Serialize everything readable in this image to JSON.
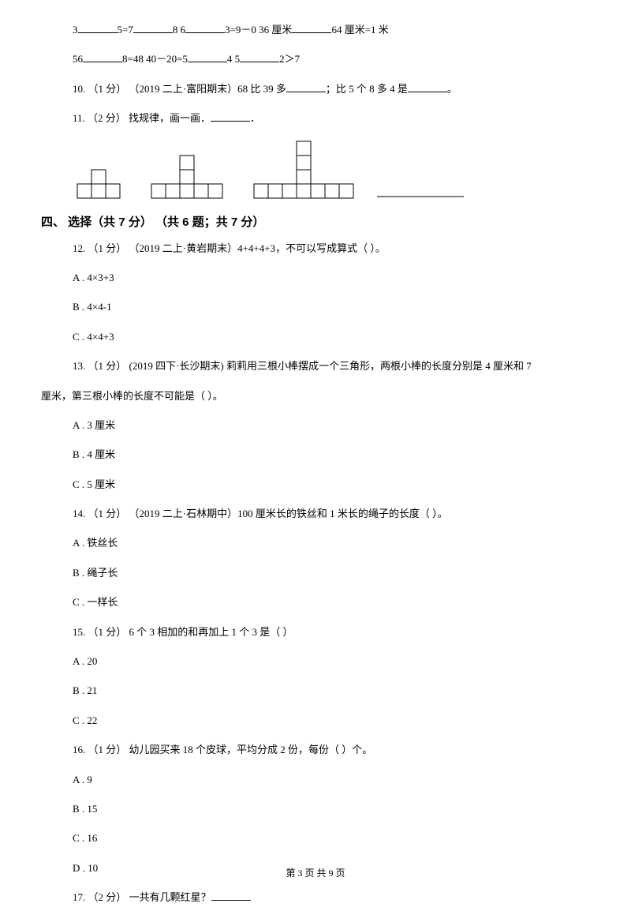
{
  "line_fill_a": {
    "p1": "3",
    "p2": "5=7",
    "p3": "8 6",
    "p4": "3=9－0   36 厘米",
    "p5": "64 厘米=1 米"
  },
  "line_fill_b": {
    "p1": "56",
    "p2": "8=48   40－20=5",
    "p3": "4 5",
    "p4": "2＞7"
  },
  "q10": {
    "pre": "10. （1 分） （2019 二上·富阳期末）68 比 39 多",
    "mid": "；比 5 个 8 多 4 是",
    "end": "。"
  },
  "q11": {
    "pre": "11. （2 分）  找规律，画一画．",
    "end": "．"
  },
  "section4": "四、 选择（共 7 分） （共 6 题；共 7 分）",
  "q12": {
    "text": "12. （1 分） （2019 二上·黄岩期末）4+4+4+3，不可以写成算式（     ）。",
    "a": "A . 4×3+3",
    "b": "B . 4×4-1",
    "c": "C . 4×4+3"
  },
  "q13": {
    "l1": "13.  （1 分）  (2019 四下·长沙期末)  莉莉用三根小棒摆成一个三角形，两根小棒的长度分别是 4 厘米和 7",
    "l2": "厘米，第三根小棒的长度不可能是（    ）。",
    "a": "A . 3 厘米",
    "b": "B . 4 厘米",
    "c": "C . 5 厘米"
  },
  "q14": {
    "text": "14. （1 分） （2019 二上·石林期中）100 厘米长的铁丝和 1 米长的绳子的长度（     ）。",
    "a": "A . 铁丝长",
    "b": "B . 绳子长",
    "c": "C . 一样长"
  },
  "q15": {
    "text": "15. （1 分）  6 个 3 相加的和再加上 1 个 3 是（     ）",
    "a": "A . 20",
    "b": "B . 21",
    "c": "C . 22"
  },
  "q16": {
    "text": "16. （1 分）  幼儿园买来 18 个皮球，平均分成 2 份，每份（     ）个。",
    "a": "A . 9",
    "b": "B . 15",
    "c": "C . 16",
    "d": "D . 10"
  },
  "q17": {
    "text": "17. （2 分）  一共有几颗红星？"
  },
  "footer": "第 3 页 共 9 页",
  "svg": {
    "cell": 18,
    "stroke": "#000000",
    "stroke_width": 1,
    "bg": "#ffffff",
    "shape1": {
      "cols": 3,
      "tower": 1
    },
    "shape2": {
      "cols": 5,
      "tower": 2
    },
    "shape3": {
      "cols": 7,
      "tower": 3
    },
    "answer_line_width": 110
  }
}
